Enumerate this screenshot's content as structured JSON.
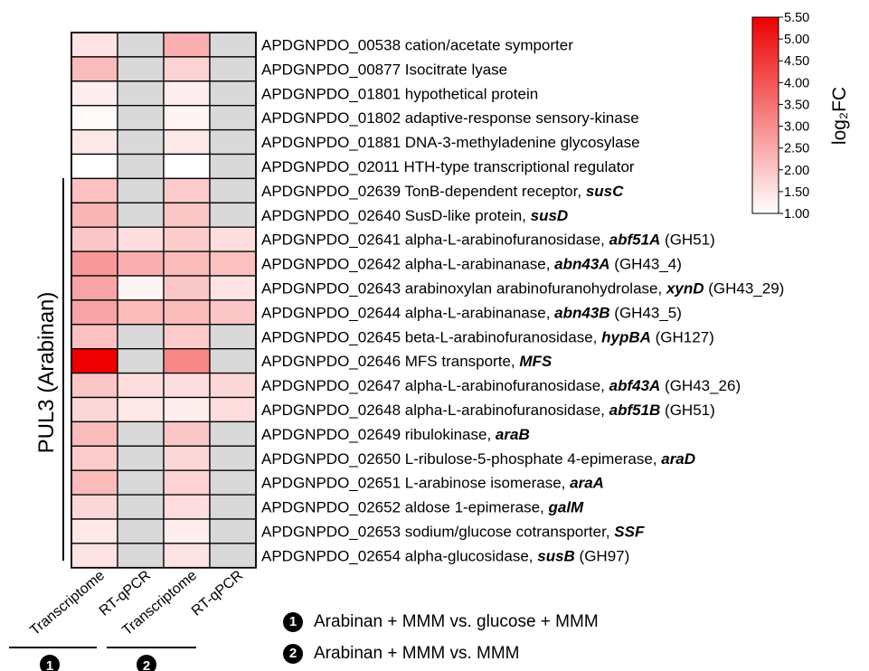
{
  "chart_data": {
    "type": "heatmap",
    "columns": [
      "Transcriptome",
      "RT-qPCR",
      "Transcriptome",
      "RT-qPCR"
    ],
    "column_groups": [
      {
        "symbol": "1",
        "description": "Arabinan + MMM vs. glucose + MMM"
      },
      {
        "symbol": "2",
        "description": "Arabinan + MMM vs. MMM"
      }
    ],
    "cluster_label": "PUL3 (Arabinan)",
    "colorbar": {
      "label": "log₂FC",
      "min": 1.0,
      "max": 5.5,
      "low_color": "#ffffff",
      "high_color": "#ee0000",
      "ticks": [
        "1.00",
        "1.50",
        "2.00",
        "2.50",
        "3.00",
        "3.50",
        "4.00",
        "4.50",
        "5.00",
        "5.50"
      ]
    },
    "missing_color": "#d9d9d9",
    "rows": [
      {
        "id": "APDGNPDO_00538",
        "desc": "cation/acetate symporter",
        "gene": "",
        "family": "",
        "cluster": false,
        "values": [
          1.5,
          null,
          2.4,
          null
        ]
      },
      {
        "id": "APDGNPDO_00877",
        "desc": "Isocitrate lyase",
        "gene": "",
        "family": "",
        "cluster": false,
        "values": [
          2.2,
          null,
          1.8,
          null
        ]
      },
      {
        "id": "APDGNPDO_01801",
        "desc": "hypothetical protein",
        "gene": "",
        "family": "",
        "cluster": false,
        "values": [
          1.3,
          null,
          1.3,
          null
        ]
      },
      {
        "id": "APDGNPDO_01802",
        "desc": "adaptive-response sensory-kinase",
        "gene": "",
        "family": "",
        "cluster": false,
        "values": [
          1.1,
          null,
          1.2,
          null
        ]
      },
      {
        "id": "APDGNPDO_01881",
        "desc": "DNA-3-methyladenine glycosylase",
        "gene": "",
        "family": "",
        "cluster": false,
        "values": [
          1.4,
          null,
          1.4,
          null
        ]
      },
      {
        "id": "APDGNPDO_02011",
        "desc": "HTH-type transcriptional regulator",
        "gene": "",
        "family": "",
        "cluster": false,
        "values": [
          1.0,
          null,
          1.0,
          null
        ]
      },
      {
        "id": "APDGNPDO_02639",
        "desc": "TonB-dependent receptor, ",
        "gene": "susC",
        "family": "",
        "cluster": true,
        "values": [
          2.1,
          null,
          1.9,
          null
        ]
      },
      {
        "id": "APDGNPDO_02640",
        "desc": "SusD-like protein, ",
        "gene": "susD",
        "family": "",
        "cluster": true,
        "values": [
          2.3,
          null,
          2.0,
          null
        ]
      },
      {
        "id": "APDGNPDO_02641",
        "desc": "alpha-L-arabinofuranosidase, ",
        "gene": "abf51A",
        "family": "(GH51)",
        "cluster": true,
        "values": [
          2.0,
          1.6,
          1.9,
          1.6
        ]
      },
      {
        "id": "APDGNPDO_02642",
        "desc": "alpha-L-arabinanase, ",
        "gene": "abn43A",
        "family": "(GH43_4)",
        "cluster": true,
        "values": [
          2.8,
          2.4,
          2.2,
          2.1
        ]
      },
      {
        "id": "APDGNPDO_02643",
        "desc": "arabinoxylan arabinofuranohydrolase, ",
        "gene": "xynD",
        "family": "(GH43_29)",
        "cluster": true,
        "values": [
          2.6,
          1.2,
          2.0,
          1.5
        ]
      },
      {
        "id": "APDGNPDO_02644",
        "desc": "alpha-L-arabinanase, ",
        "gene": "abn43B",
        "family": "(GH43_5)",
        "cluster": true,
        "values": [
          2.6,
          2.2,
          2.2,
          2.0
        ]
      },
      {
        "id": "APDGNPDO_02645",
        "desc": "beta-L-arabinofuranosidase, ",
        "gene": "hypBA",
        "family": "(GH127)",
        "cluster": true,
        "values": [
          2.1,
          null,
          1.9,
          null
        ]
      },
      {
        "id": "APDGNPDO_02646",
        "desc": "MFS transporte, ",
        "gene": "MFS",
        "family": "",
        "cluster": true,
        "values": [
          5.5,
          null,
          3.1,
          null
        ]
      },
      {
        "id": "APDGNPDO_02647",
        "desc": "alpha-L-arabinofuranosidase, ",
        "gene": "abf43A",
        "family": "(GH43_26)",
        "cluster": true,
        "values": [
          2.0,
          1.6,
          1.6,
          1.7
        ]
      },
      {
        "id": "APDGNPDO_02648",
        "desc": "alpha-L-arabinofuranosidase, ",
        "gene": "abf51B",
        "family": "(GH51)",
        "cluster": true,
        "values": [
          1.7,
          1.4,
          1.3,
          1.6
        ]
      },
      {
        "id": "APDGNPDO_02649",
        "desc": "ribulokinase, ",
        "gene": "araB",
        "family": "",
        "cluster": true,
        "values": [
          2.2,
          null,
          2.0,
          null
        ]
      },
      {
        "id": "APDGNPDO_02650",
        "desc": "L-ribulose-5-phosphate 4-epimerase, ",
        "gene": "araD",
        "family": "",
        "cluster": true,
        "values": [
          1.9,
          null,
          1.7,
          null
        ]
      },
      {
        "id": "APDGNPDO_02651",
        "desc": "L-arabinose isomerase, ",
        "gene": "araA",
        "family": "",
        "cluster": true,
        "values": [
          2.2,
          null,
          1.8,
          null
        ]
      },
      {
        "id": "APDGNPDO_02652",
        "desc": "aldose 1-epimerase, ",
        "gene": "galM",
        "family": "",
        "cluster": true,
        "values": [
          1.7,
          null,
          1.6,
          null
        ]
      },
      {
        "id": "APDGNPDO_02653",
        "desc": "sodium/glucose cotransporter, ",
        "gene": "SSF",
        "family": "",
        "cluster": true,
        "values": [
          1.4,
          null,
          1.3,
          null
        ]
      },
      {
        "id": "APDGNPDO_02654",
        "desc": "alpha-glucosidase, ",
        "gene": "susB",
        "family": "(GH97)",
        "cluster": true,
        "values": [
          1.5,
          null,
          1.5,
          null
        ]
      }
    ]
  }
}
